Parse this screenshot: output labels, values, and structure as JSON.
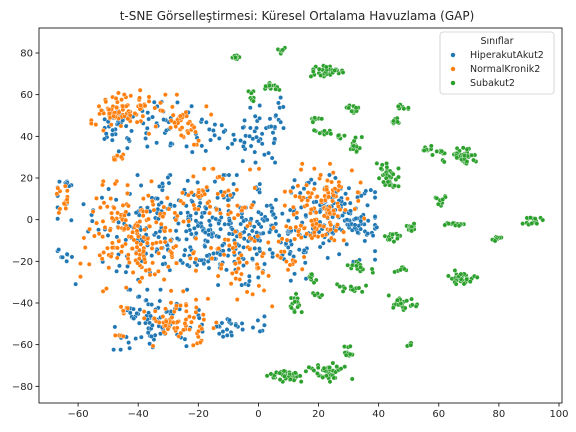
{
  "chart_data": {
    "type": "scatter",
    "title": "t-SNE Görselleştirmesi: Küresel Ortalama Havuzlama (GAP)",
    "xlabel": "",
    "ylabel": "",
    "xlim": [
      -73,
      101
    ],
    "ylim": [
      -88,
      92
    ],
    "xticks": [
      -60,
      -40,
      -20,
      0,
      20,
      40,
      60,
      80,
      100
    ],
    "yticks": [
      -80,
      -60,
      -40,
      -20,
      0,
      20,
      40,
      60,
      80
    ],
    "grid": false,
    "legend": {
      "title": "Sınıflar",
      "placement": "top-right",
      "entries": [
        "HiperakutAkut2",
        "NormalKronik2",
        "Subakut2"
      ]
    },
    "colors": {
      "HiperakutAkut2": "#1f77b4",
      "NormalKronik2": "#ff7f0e",
      "Subakut2": "#2ca02c"
    },
    "series": [
      {
        "name": "HiperakutAkut2",
        "color": "#1f77b4",
        "clusters": [
          {
            "x": -14,
            "y": -5,
            "rx": 44,
            "ry": 22,
            "n": 430
          },
          {
            "x": 3,
            "y": 43,
            "rx": 7,
            "ry": 13,
            "n": 40
          },
          {
            "x": -10,
            "y": 40,
            "rx": 10,
            "ry": 8,
            "n": 30
          },
          {
            "x": -32,
            "y": 47,
            "rx": 11,
            "ry": 12,
            "n": 40
          },
          {
            "x": -48,
            "y": 46,
            "rx": 6,
            "ry": 11,
            "n": 30
          },
          {
            "x": 25,
            "y": 5,
            "rx": 12,
            "ry": 14,
            "n": 70
          },
          {
            "x": 32,
            "y": -3,
            "rx": 5,
            "ry": 6,
            "n": 25
          },
          {
            "x": -34,
            "y": -48,
            "rx": 12,
            "ry": 12,
            "n": 80
          },
          {
            "x": -10,
            "y": -52,
            "rx": 10,
            "ry": 5,
            "n": 30
          },
          {
            "x": -64,
            "y": 17,
            "rx": 2,
            "ry": 2,
            "n": 8
          },
          {
            "x": -64,
            "y": -18,
            "rx": 2,
            "ry": 2,
            "n": 6
          }
        ]
      },
      {
        "name": "NormalKronik2",
        "color": "#ff7f0e",
        "clusters": [
          {
            "x": -46,
            "y": 52,
            "rx": 8,
            "ry": 9,
            "n": 80
          },
          {
            "x": -26,
            "y": 48,
            "rx": 9,
            "ry": 10,
            "n": 45
          },
          {
            "x": -40,
            "y": -8,
            "rx": 16,
            "ry": 22,
            "n": 180
          },
          {
            "x": -26,
            "y": -50,
            "rx": 10,
            "ry": 10,
            "n": 70
          },
          {
            "x": -5,
            "y": -18,
            "rx": 10,
            "ry": 20,
            "n": 60
          },
          {
            "x": 22,
            "y": 10,
            "rx": 11,
            "ry": 14,
            "n": 90
          },
          {
            "x": 17,
            "y": -5,
            "rx": 10,
            "ry": 6,
            "n": 40
          },
          {
            "x": 12,
            "y": -20,
            "rx": 5,
            "ry": 5,
            "n": 12
          },
          {
            "x": -15,
            "y": 10,
            "rx": 14,
            "ry": 12,
            "n": 50
          },
          {
            "x": -47,
            "y": 30,
            "rx": 2,
            "ry": 2,
            "n": 8
          },
          {
            "x": -65,
            "y": 10,
            "rx": 3,
            "ry": 8,
            "n": 15
          },
          {
            "x": -44,
            "y": -44,
            "rx": 2,
            "ry": 2,
            "n": 6
          },
          {
            "x": -46,
            "y": -56,
            "rx": 2,
            "ry": 1,
            "n": 5
          }
        ]
      },
      {
        "name": "Subakut2",
        "color": "#2ca02c",
        "clusters": [
          {
            "x": -7,
            "y": 78,
            "rx": 2,
            "ry": 1.5,
            "n": 12
          },
          {
            "x": 8,
            "y": 81,
            "rx": 1.5,
            "ry": 1.5,
            "n": 8
          },
          {
            "x": 23,
            "y": 71,
            "rx": 5,
            "ry": 3,
            "n": 40
          },
          {
            "x": 5,
            "y": 64,
            "rx": 3,
            "ry": 2,
            "n": 14
          },
          {
            "x": -2,
            "y": 58,
            "rx": 1.5,
            "ry": 3,
            "n": 8
          },
          {
            "x": 32,
            "y": 53,
            "rx": 2.5,
            "ry": 1.5,
            "n": 12
          },
          {
            "x": 48,
            "y": 54,
            "rx": 2.5,
            "ry": 1,
            "n": 8
          },
          {
            "x": 46,
            "y": 48,
            "rx": 2,
            "ry": 1.5,
            "n": 10
          },
          {
            "x": 19,
            "y": 48,
            "rx": 2,
            "ry": 1,
            "n": 8
          },
          {
            "x": 21,
            "y": 42,
            "rx": 3,
            "ry": 1,
            "n": 10
          },
          {
            "x": 32,
            "y": 36,
            "rx": 2,
            "ry": 4,
            "n": 16
          },
          {
            "x": 27,
            "y": 40,
            "rx": 1.5,
            "ry": 1.5,
            "n": 6
          },
          {
            "x": 57,
            "y": 33,
            "rx": 3,
            "ry": 2,
            "n": 14
          },
          {
            "x": 67,
            "y": 30,
            "rx": 5,
            "ry": 4,
            "n": 45
          },
          {
            "x": 43,
            "y": 21,
            "rx": 3,
            "ry": 5,
            "n": 35
          },
          {
            "x": 61,
            "y": 9,
            "rx": 2,
            "ry": 3,
            "n": 12
          },
          {
            "x": 51,
            "y": -3,
            "rx": 3,
            "ry": 2,
            "n": 12
          },
          {
            "x": 45,
            "y": -8,
            "rx": 3,
            "ry": 3,
            "n": 15
          },
          {
            "x": 65,
            "y": -2,
            "rx": 4,
            "ry": 1,
            "n": 14
          },
          {
            "x": 91,
            "y": -1,
            "rx": 3,
            "ry": 2,
            "n": 15
          },
          {
            "x": 79,
            "y": -9,
            "rx": 2,
            "ry": 1,
            "n": 8
          },
          {
            "x": 34,
            "y": -23,
            "rx": 4,
            "ry": 3,
            "n": 18
          },
          {
            "x": 47,
            "y": -24,
            "rx": 3,
            "ry": 1,
            "n": 8
          },
          {
            "x": 68,
            "y": -28,
            "rx": 4,
            "ry": 3,
            "n": 30
          },
          {
            "x": 31,
            "y": -33,
            "rx": 4,
            "ry": 2,
            "n": 15
          },
          {
            "x": 48,
            "y": -40,
            "rx": 4,
            "ry": 3,
            "n": 25
          },
          {
            "x": 18,
            "y": -28,
            "rx": 1.5,
            "ry": 3,
            "n": 8
          },
          {
            "x": 12,
            "y": -40,
            "rx": 2,
            "ry": 4,
            "n": 18
          },
          {
            "x": 20,
            "y": -36,
            "rx": 1.5,
            "ry": 2,
            "n": 6
          },
          {
            "x": 50,
            "y": -60,
            "rx": 2,
            "ry": 1,
            "n": 6
          },
          {
            "x": 30,
            "y": -64,
            "rx": 2,
            "ry": 3,
            "n": 10
          },
          {
            "x": 9,
            "y": -75,
            "rx": 6,
            "ry": 3,
            "n": 40
          },
          {
            "x": 24,
            "y": -73,
            "rx": 6,
            "ry": 4,
            "n": 40
          }
        ]
      }
    ]
  }
}
